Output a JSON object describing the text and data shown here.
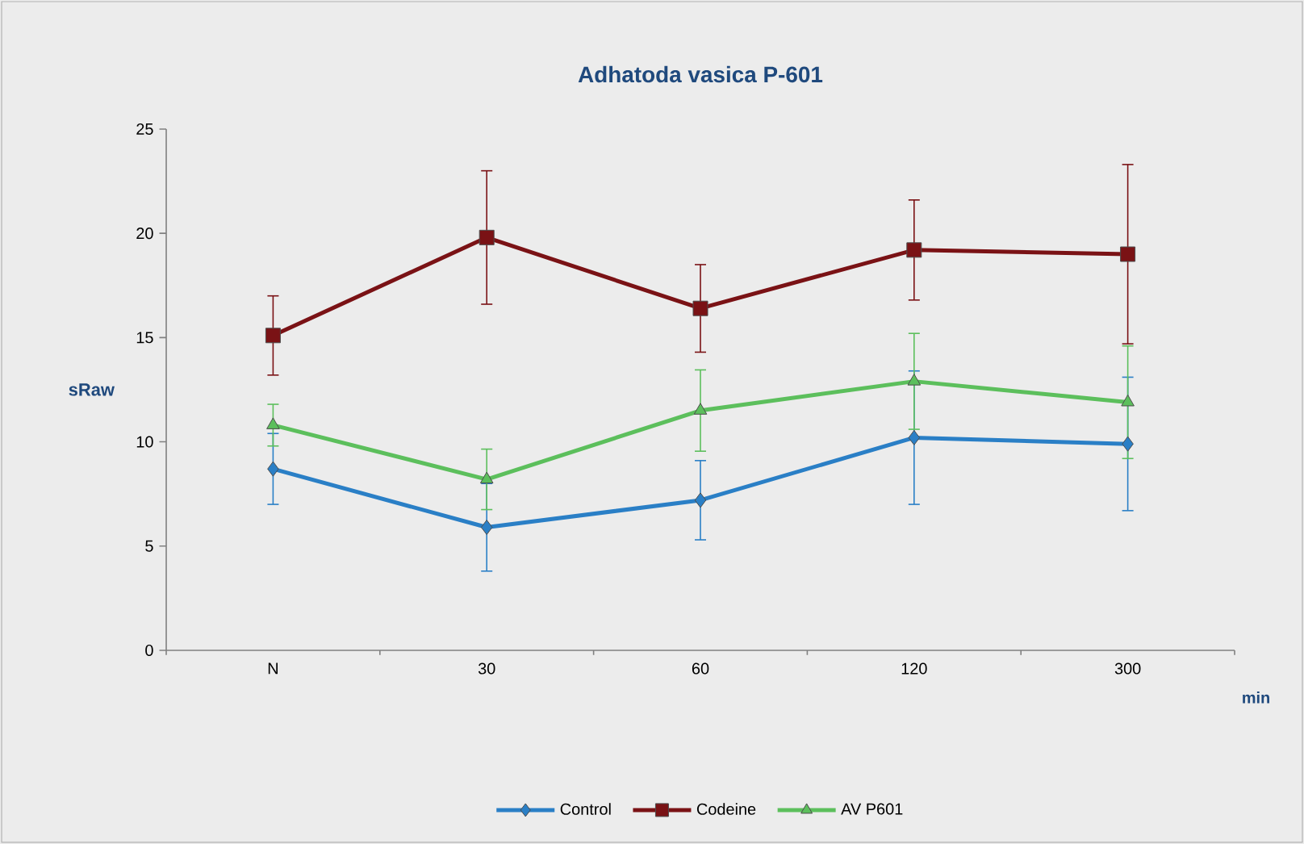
{
  "chart_data": {
    "type": "line",
    "title": "Adhatoda vasica P-601",
    "xlabel": "min",
    "ylabel": "sRaw",
    "categories": [
      "N",
      "30",
      "60",
      "120",
      "300"
    ],
    "ylim": [
      0,
      25
    ],
    "yticks": [
      0,
      5,
      10,
      15,
      20,
      25
    ],
    "legend": "bottom",
    "grid": false,
    "series": [
      {
        "name": "Control",
        "color": "#2a7fc6",
        "marker": "diamond",
        "values": [
          8.7,
          5.9,
          7.2,
          10.2,
          9.9
        ],
        "errors": [
          1.7,
          2.1,
          1.9,
          3.2,
          3.2
        ]
      },
      {
        "name": "Codeine",
        "color": "#7a1215",
        "marker": "square",
        "values": [
          15.1,
          19.8,
          16.4,
          19.2,
          19.0
        ],
        "errors": [
          1.9,
          3.2,
          2.1,
          2.4,
          4.3
        ]
      },
      {
        "name": "AV P601",
        "color": "#5cbf5c",
        "marker": "triangle",
        "values": [
          10.8,
          8.2,
          11.5,
          12.9,
          11.9
        ],
        "errors": [
          1.0,
          1.45,
          1.95,
          2.3,
          2.7
        ]
      }
    ]
  }
}
